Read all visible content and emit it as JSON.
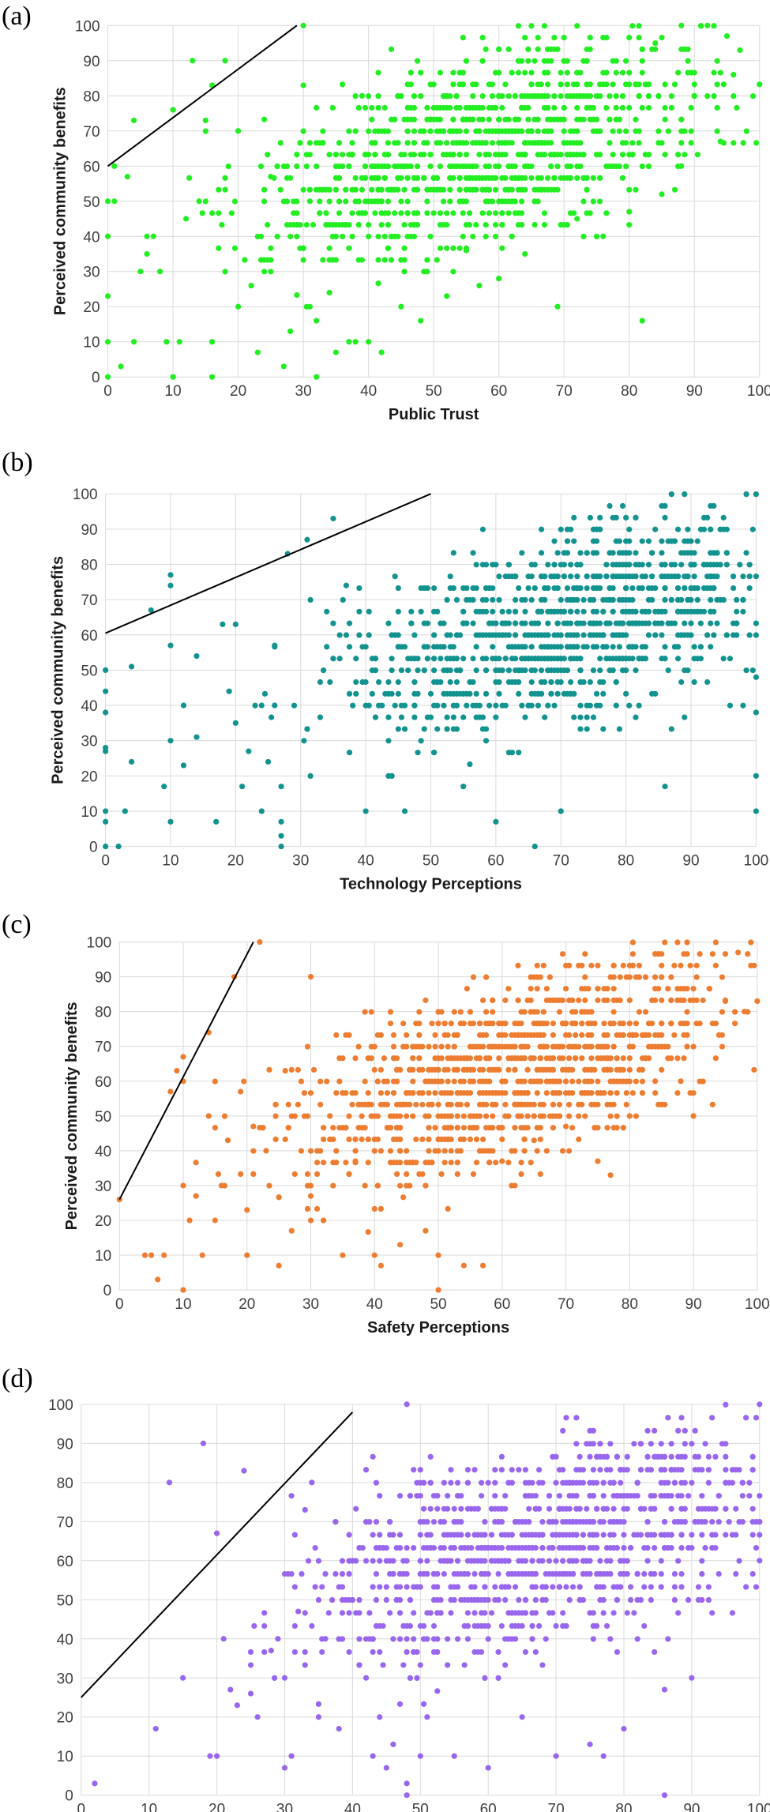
{
  "chart_data": [
    {
      "type": "scatter",
      "panel_label": "(a)",
      "xlabel": "Public Trust",
      "ylabel": "Perceived community benefits",
      "xlim": [
        0,
        100
      ],
      "ylim": [
        0,
        100
      ],
      "xticks": [
        0,
        10,
        20,
        30,
        40,
        50,
        60,
        70,
        80,
        90,
        100
      ],
      "yticks": [
        0,
        10,
        20,
        30,
        40,
        50,
        60,
        70,
        80,
        90,
        100
      ],
      "grid": true,
      "color": "#22ee22",
      "boundary_line": [
        [
          0,
          60
        ],
        [
          29,
          100
        ]
      ],
      "cluster": {
        "x_center": 58,
        "y_center": 65,
        "slope": 0.45
      },
      "points": [
        [
          0,
          0
        ],
        [
          0,
          10
        ],
        [
          0,
          23
        ],
        [
          0,
          40
        ],
        [
          0,
          50
        ],
        [
          1,
          50
        ],
        [
          1,
          60
        ],
        [
          2,
          3
        ],
        [
          3,
          57
        ],
        [
          4,
          73
        ],
        [
          4,
          10
        ],
        [
          5,
          30
        ],
        [
          6,
          35
        ],
        [
          6,
          40
        ],
        [
          7,
          40
        ],
        [
          8,
          30
        ],
        [
          9,
          10
        ],
        [
          10,
          76
        ],
        [
          10,
          0
        ],
        [
          11,
          10
        ],
        [
          12,
          45
        ],
        [
          13,
          90
        ],
        [
          14,
          50
        ],
        [
          15,
          73
        ],
        [
          16,
          83
        ],
        [
          16,
          10
        ],
        [
          16,
          0
        ],
        [
          18,
          90
        ],
        [
          20,
          20
        ],
        [
          20,
          70
        ],
        [
          22,
          26
        ],
        [
          23,
          7
        ],
        [
          25,
          57
        ],
        [
          27,
          3
        ],
        [
          28,
          13
        ],
        [
          30,
          100
        ],
        [
          30,
          83
        ],
        [
          31,
          50
        ],
        [
          32,
          16
        ],
        [
          32,
          0
        ],
        [
          34,
          24
        ],
        [
          35,
          7
        ],
        [
          37,
          10
        ],
        [
          38,
          10
        ],
        [
          39,
          80
        ],
        [
          40,
          10
        ],
        [
          42,
          7
        ],
        [
          45,
          20
        ],
        [
          48,
          16
        ],
        [
          52,
          23
        ],
        [
          55,
          36
        ],
        [
          57,
          26
        ],
        [
          60,
          28
        ],
        [
          62,
          40
        ],
        [
          64,
          35
        ],
        [
          69,
          20
        ],
        [
          72,
          45
        ],
        [
          76,
          40
        ],
        [
          80,
          47
        ],
        [
          82,
          16
        ],
        [
          85,
          52
        ],
        [
          88,
          60
        ],
        [
          90,
          80
        ],
        [
          94,
          67
        ],
        [
          96,
          86
        ],
        [
          95,
          97
        ],
        [
          97,
          93
        ],
        [
          92,
          100
        ],
        [
          88,
          100
        ],
        [
          84,
          95
        ]
      ]
    },
    {
      "type": "scatter",
      "panel_label": "(b)",
      "xlabel": "Technology Perceptions",
      "ylabel": "Perceived community benefits",
      "xlim": [
        0,
        100
      ],
      "ylim": [
        0,
        100
      ],
      "xticks": [
        0,
        10,
        20,
        30,
        40,
        50,
        60,
        70,
        80,
        90,
        100
      ],
      "yticks": [
        0,
        10,
        20,
        30,
        40,
        50,
        60,
        70,
        80,
        90,
        100
      ],
      "grid": true,
      "color": "#13938f",
      "boundary_line": [
        [
          0,
          60.5
        ],
        [
          50,
          100
        ]
      ],
      "cluster": {
        "x_center": 72,
        "y_center": 63,
        "slope": 0.4
      },
      "points": [
        [
          0,
          0
        ],
        [
          0,
          7
        ],
        [
          0,
          10
        ],
        [
          0,
          27
        ],
        [
          0,
          28
        ],
        [
          0,
          38
        ],
        [
          0,
          44
        ],
        [
          0,
          50
        ],
        [
          2,
          0
        ],
        [
          3,
          10
        ],
        [
          4,
          24
        ],
        [
          4,
          51
        ],
        [
          7,
          67
        ],
        [
          9,
          17
        ],
        [
          10,
          7
        ],
        [
          10,
          30
        ],
        [
          10,
          57
        ],
        [
          10,
          74
        ],
        [
          10,
          77
        ],
        [
          12,
          23
        ],
        [
          12,
          40
        ],
        [
          14,
          54
        ],
        [
          14,
          31
        ],
        [
          17,
          7
        ],
        [
          18,
          63
        ],
        [
          19,
          44
        ],
        [
          20,
          63
        ],
        [
          20,
          35
        ],
        [
          21,
          17
        ],
        [
          22,
          27
        ],
        [
          24,
          40
        ],
        [
          24,
          10
        ],
        [
          25,
          24
        ],
        [
          26,
          57
        ],
        [
          26,
          40
        ],
        [
          27,
          17
        ],
        [
          27,
          7
        ],
        [
          27,
          3
        ],
        [
          27,
          0
        ],
        [
          28,
          83
        ],
        [
          31,
          87
        ],
        [
          35,
          93
        ],
        [
          37,
          74
        ],
        [
          40,
          10
        ],
        [
          44,
          20
        ],
        [
          46,
          10
        ],
        [
          55,
          17
        ],
        [
          60,
          7
        ],
        [
          66,
          0
        ],
        [
          70,
          10
        ],
        [
          86,
          17
        ],
        [
          100,
          48
        ],
        [
          100,
          38
        ],
        [
          100,
          20
        ],
        [
          100,
          10
        ]
      ]
    },
    {
      "type": "scatter",
      "panel_label": "(c)",
      "xlabel": "Safety Perceptions",
      "ylabel": "Perceived community benefits",
      "xlim": [
        0,
        100
      ],
      "ylim": [
        0,
        100
      ],
      "xticks": [
        0,
        10,
        20,
        30,
        40,
        50,
        60,
        70,
        80,
        90,
        100
      ],
      "yticks": [
        0,
        10,
        20,
        30,
        40,
        50,
        60,
        70,
        80,
        90,
        100
      ],
      "grid": true,
      "color": "#ed7d31",
      "boundary_line": [
        [
          0,
          26
        ],
        [
          21,
          100
        ]
      ],
      "cluster": {
        "x_center": 60,
        "y_center": 62,
        "slope": 0.55
      },
      "points": [
        [
          0,
          26
        ],
        [
          4,
          10
        ],
        [
          5,
          10
        ],
        [
          6,
          3
        ],
        [
          7,
          10
        ],
        [
          8,
          57
        ],
        [
          9,
          63
        ],
        [
          10,
          67
        ],
        [
          10,
          60
        ],
        [
          10,
          0
        ],
        [
          10,
          30
        ],
        [
          11,
          20
        ],
        [
          12,
          27
        ],
        [
          13,
          10
        ],
        [
          14,
          74
        ],
        [
          14,
          50
        ],
        [
          15,
          20
        ],
        [
          16,
          30
        ],
        [
          17,
          43
        ],
        [
          18,
          90
        ],
        [
          19,
          57
        ],
        [
          20,
          10
        ],
        [
          20,
          23
        ],
        [
          21,
          47
        ],
        [
          22,
          100
        ],
        [
          23,
          40
        ],
        [
          25,
          7
        ],
        [
          26,
          63
        ],
        [
          27,
          17
        ],
        [
          30,
          90
        ],
        [
          30,
          27
        ],
        [
          33,
          50
        ],
        [
          35,
          10
        ],
        [
          37,
          37
        ],
        [
          40,
          10
        ],
        [
          41,
          7
        ],
        [
          44,
          13
        ],
        [
          48,
          17
        ],
        [
          50,
          10
        ],
        [
          50,
          0
        ],
        [
          54,
          7
        ],
        [
          57,
          7
        ],
        [
          60,
          37
        ],
        [
          62,
          30
        ],
        [
          65,
          43
        ],
        [
          70,
          47
        ],
        [
          75,
          37
        ],
        [
          77,
          33
        ],
        [
          80,
          50
        ],
        [
          84,
          60
        ],
        [
          88,
          60
        ],
        [
          90,
          50
        ],
        [
          95,
          83
        ],
        [
          98,
          80
        ],
        [
          100,
          83
        ],
        [
          97,
          97
        ]
      ]
    },
    {
      "type": "scatter",
      "panel_label": "(d)",
      "xlabel": "",
      "ylabel": "",
      "xlim": [
        0,
        100
      ],
      "ylim": [
        0,
        100
      ],
      "xticks": [
        0,
        10,
        20,
        30,
        40,
        50,
        60,
        70,
        80,
        90,
        100
      ],
      "yticks": [
        0,
        10,
        20,
        30,
        40,
        50,
        60,
        70,
        80,
        90,
        100
      ],
      "grid": true,
      "color": "#9966ee",
      "boundary_line": [
        [
          0,
          25
        ],
        [
          40,
          98
        ]
      ],
      "cluster": {
        "x_center": 68,
        "y_center": 63,
        "slope": 0.4
      },
      "points": [
        [
          2,
          3
        ],
        [
          11,
          17
        ],
        [
          13,
          80
        ],
        [
          15,
          30
        ],
        [
          18,
          90
        ],
        [
          19,
          10
        ],
        [
          20,
          10
        ],
        [
          20,
          67
        ],
        [
          21,
          40
        ],
        [
          22,
          27
        ],
        [
          23,
          23
        ],
        [
          24,
          83
        ],
        [
          25,
          26
        ],
        [
          26,
          20
        ],
        [
          28,
          37
        ],
        [
          29,
          40
        ],
        [
          30,
          7
        ],
        [
          30,
          30
        ],
        [
          31,
          10
        ],
        [
          32,
          47
        ],
        [
          33,
          73
        ],
        [
          34,
          80
        ],
        [
          35,
          20
        ],
        [
          36,
          40
        ],
        [
          38,
          17
        ],
        [
          40,
          60
        ],
        [
          42,
          30
        ],
        [
          43,
          10
        ],
        [
          44,
          20
        ],
        [
          45,
          7
        ],
        [
          46,
          13
        ],
        [
          48,
          3
        ],
        [
          48,
          0
        ],
        [
          48,
          100
        ],
        [
          50,
          10
        ],
        [
          51,
          20
        ],
        [
          55,
          10
        ],
        [
          60,
          7
        ],
        [
          65,
          20
        ],
        [
          70,
          10
        ],
        [
          75,
          13
        ],
        [
          77,
          10
        ],
        [
          80,
          17
        ],
        [
          86,
          0
        ],
        [
          86,
          27
        ],
        [
          90,
          30
        ],
        [
          100,
          60
        ],
        [
          100,
          100
        ]
      ]
    }
  ]
}
